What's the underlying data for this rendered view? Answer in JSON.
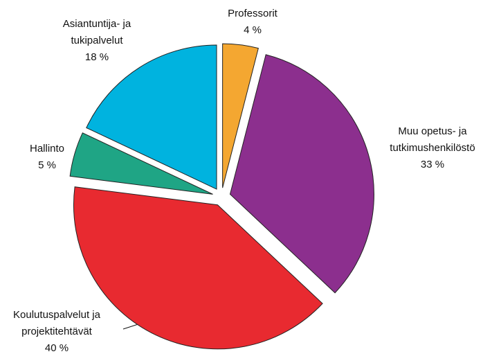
{
  "chart_data": {
    "type": "pie",
    "categories": [
      "Professorit",
      "Muu opetus- ja\ntutkimushenkilöstö",
      "Koulutuspalvelut ja\nprojektitehtävät",
      "Hallinto",
      "Asiantuntija- ja\ntukipalvelut"
    ],
    "values": [
      4,
      33,
      40,
      5,
      18
    ],
    "value_labels": [
      "4 %",
      "33 %",
      "40 %",
      "5 %",
      "18 %"
    ],
    "colors": [
      "#f4a731",
      "#8c2f8e",
      "#e82a30",
      "#1fa585",
      "#00b3df"
    ]
  }
}
